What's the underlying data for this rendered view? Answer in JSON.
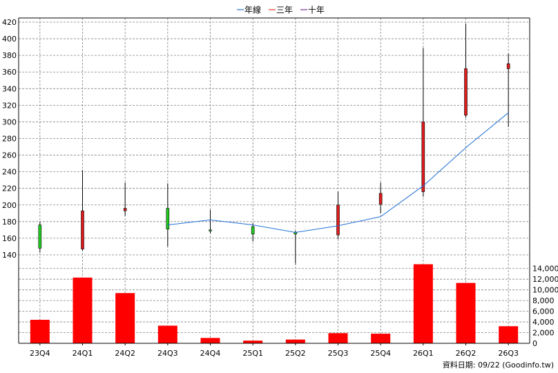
{
  "legend": [
    {
      "label": "年線",
      "color": "#1f6fd6"
    },
    {
      "label": "三年",
      "color": "#e23a2a"
    },
    {
      "label": "十年",
      "color": "#7a2b8e"
    }
  ],
  "footer": "資料日期: 09/22  (Goodinfo.tw)",
  "colors": {
    "up": "#e01b1b",
    "down": "#22cc22",
    "bar": "#ff0000",
    "ma": "#1f6fd6",
    "grid": "#808080"
  },
  "chart_data": [
    {
      "type": "candlestick",
      "categories": [
        "23Q4",
        "24Q1",
        "24Q2",
        "24Q3",
        "24Q4",
        "25Q1",
        "25Q2",
        "25Q3",
        "25Q4",
        "26Q1",
        "26Q2",
        "26Q3"
      ],
      "ohlc": [
        {
          "o": 176,
          "h": 180,
          "l": 143,
          "c": 148
        },
        {
          "o": 147,
          "h": 242,
          "l": 145,
          "c": 193
        },
        {
          "o": 193,
          "h": 227,
          "l": 187,
          "c": 196
        },
        {
          "o": 196,
          "h": 226,
          "l": 150,
          "c": 171
        },
        {
          "o": 170,
          "h": 194,
          "l": 166,
          "c": 169
        },
        {
          "o": 174,
          "h": 178,
          "l": 156,
          "c": 165
        },
        {
          "o": 167,
          "h": 169,
          "l": 128,
          "c": 165
        },
        {
          "o": 164,
          "h": 216,
          "l": 159,
          "c": 200
        },
        {
          "o": 201,
          "h": 227,
          "l": 190,
          "c": 214
        },
        {
          "o": 216,
          "h": 389,
          "l": 210,
          "c": 300
        },
        {
          "o": 308,
          "h": 418,
          "l": 305,
          "c": 364
        },
        {
          "o": 364,
          "h": 382,
          "l": 294,
          "c": 370
        }
      ],
      "ma_series": {
        "name": "年線",
        "values": [
          null,
          null,
          null,
          176,
          182,
          176,
          167,
          175,
          186,
          223,
          269,
          311
        ]
      },
      "yticks": [
        140,
        160,
        180,
        200,
        220,
        240,
        260,
        280,
        300,
        320,
        340,
        360,
        380,
        400,
        420
      ],
      "ylim": [
        130,
        425
      ]
    },
    {
      "type": "bar",
      "categories": [
        "23Q4",
        "24Q1",
        "24Q2",
        "24Q3",
        "24Q4",
        "25Q1",
        "25Q2",
        "25Q3",
        "25Q4",
        "26Q1",
        "26Q2",
        "26Q3"
      ],
      "values": [
        4400,
        12300,
        9400,
        3300,
        1000,
        500,
        700,
        1900,
        1800,
        14800,
        11300,
        3200
      ],
      "yticks": [
        "0",
        "2,000",
        "4,000",
        "6,000",
        "8,000",
        "10,000",
        "12,000",
        "14,000"
      ],
      "ylim": [
        0,
        15000
      ]
    }
  ]
}
